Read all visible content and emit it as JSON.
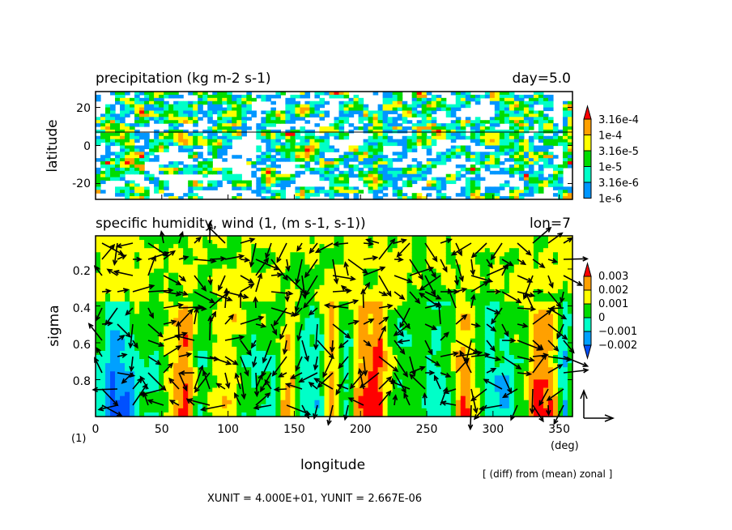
{
  "colors": {
    "level_colors": [
      "#0096ff",
      "#00ffc8",
      "#00dc00",
      "#ffff00",
      "#ffa000",
      "#ff0000"
    ],
    "diff_colors": [
      "#0050ff",
      "#00a0ff",
      "#00ffc8",
      "#00dc00",
      "#ffff00",
      "#ffa000",
      "#ff0000"
    ]
  },
  "chart_data": [
    {
      "type": "heatmap",
      "title": "precipitation (kg m-2 s-1)",
      "title_right": "day=5.0",
      "ylabel": "latitude",
      "xlim": [
        0,
        360
      ],
      "ylim": [
        -28.3,
        28.3
      ],
      "yticks": [
        20,
        0,
        -20
      ],
      "ytick_labels": [
        "20",
        "0",
        "-20"
      ],
      "xticks": [
        0,
        50,
        100,
        150,
        200,
        250,
        300,
        350
      ],
      "reference_latitude": 7,
      "colorbar_levels": [
        "3.16e-4",
        "1e-4",
        "3.16e-5",
        "1e-5",
        "3.16e-6",
        "1e-6"
      ]
    },
    {
      "type": "heatmap",
      "title": "specific humidity, wind (1, (m s-1, s-1))",
      "title_right": "lon=7",
      "ylabel": "sigma",
      "xlabel": "longitude",
      "xunit_label": "(deg)",
      "vector_unit_label": "(1)",
      "xlim": [
        0,
        360
      ],
      "ylim": [
        1.0,
        0.02
      ],
      "xticks": [
        0,
        50,
        100,
        150,
        200,
        250,
        300,
        350
      ],
      "xtick_labels": [
        "0",
        "50",
        "100",
        "150",
        "200",
        "250",
        "300",
        "350"
      ],
      "yticks": [
        0.2,
        0.4,
        0.6,
        0.8
      ],
      "ytick_labels": [
        "0.2",
        "0.4",
        "0.6",
        "0.8"
      ],
      "colorbar_levels": [
        "0.003",
        "0.002",
        "0.001",
        "0",
        "−0.001",
        "−0.002"
      ],
      "note": "[ (diff) from (mean) zonal ]",
      "units_caption": "XUNIT = 4.000E+01, YUNIT = 2.667E-06"
    }
  ]
}
